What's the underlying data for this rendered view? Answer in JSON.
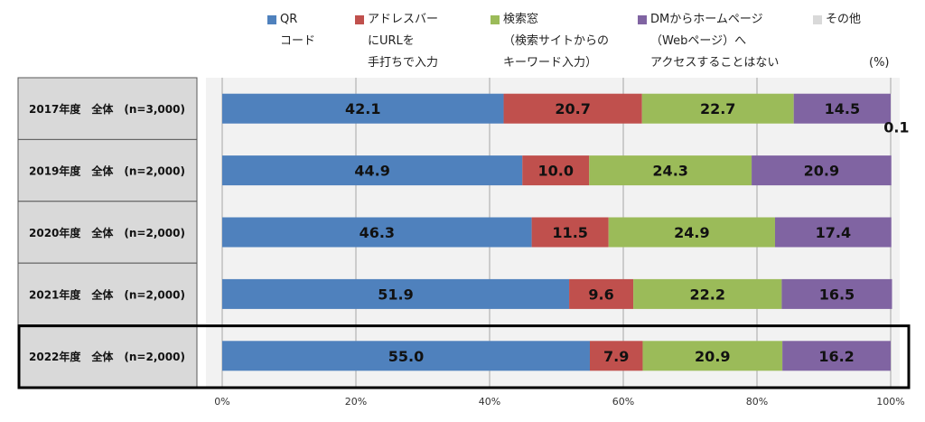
{
  "legend": {
    "unit": "(%)",
    "items": [
      {
        "lines": [
          "QR",
          "コード"
        ],
        "color": "#4f81bd"
      },
      {
        "lines": [
          "アドレスバー",
          "にURLを",
          "手打ちで入力"
        ],
        "color": "#c0504d"
      },
      {
        "lines": [
          "検索窓",
          "（検索サイトからの",
          "キーワード入力）"
        ],
        "color": "#9bbb59"
      },
      {
        "lines": [
          "DMからホームページ",
          "（Webページ）へ",
          "アクセスすることはない"
        ],
        "color": "#8064a2"
      },
      {
        "lines": [
          "その他"
        ],
        "color": "#d9d9d9"
      }
    ]
  },
  "chart_data": {
    "type": "bar",
    "orientation": "horizontal",
    "stacked": true,
    "categories": [
      "2017年度　全体　(n=3,000)",
      "2019年度　全体　(n=2,000)",
      "2020年度　全体　(n=2,000)",
      "2021年度　全体　(n=2,000)",
      "2022年度　全体　(n=2,000)"
    ],
    "series": [
      {
        "name": "QRコード",
        "color": "#4f81bd",
        "values": [
          42.1,
          44.9,
          46.3,
          51.9,
          55.0
        ],
        "labels": [
          "42.1",
          "44.9",
          "46.3",
          "51.9",
          "55.0"
        ]
      },
      {
        "name": "アドレスバーにURLを手打ちで入力",
        "color": "#c0504d",
        "values": [
          20.7,
          10.0,
          11.5,
          9.6,
          7.9
        ],
        "labels": [
          "20.7",
          "10.0",
          "11.5",
          "9.6",
          "7.9"
        ]
      },
      {
        "name": "検索窓（検索サイトからのキーワード入力）",
        "color": "#9bbb59",
        "values": [
          22.7,
          24.3,
          24.9,
          22.2,
          20.9
        ],
        "labels": [
          "22.7",
          "24.3",
          "24.9",
          "22.2",
          "20.9"
        ]
      },
      {
        "name": "DMからホームページ（Webページ）へアクセスすることはない",
        "color": "#8064a2",
        "values": [
          14.5,
          20.9,
          17.4,
          16.5,
          16.2
        ],
        "labels": [
          "14.5",
          "20.9",
          "17.4",
          "16.5",
          "16.2"
        ]
      },
      {
        "name": "その他",
        "color": "#d9d9d9",
        "values": [
          0.1,
          0,
          0,
          0,
          0
        ],
        "labels": [
          "0.1",
          "",
          "",
          "",
          ""
        ]
      }
    ],
    "x_ticks": [
      "0%",
      "20%",
      "40%",
      "60%",
      "80%",
      "100%"
    ],
    "xlim": [
      0,
      100
    ],
    "grid": true,
    "highlighted_category": "2022年度　全体　(n=2,000)",
    "legend_position": "top"
  }
}
